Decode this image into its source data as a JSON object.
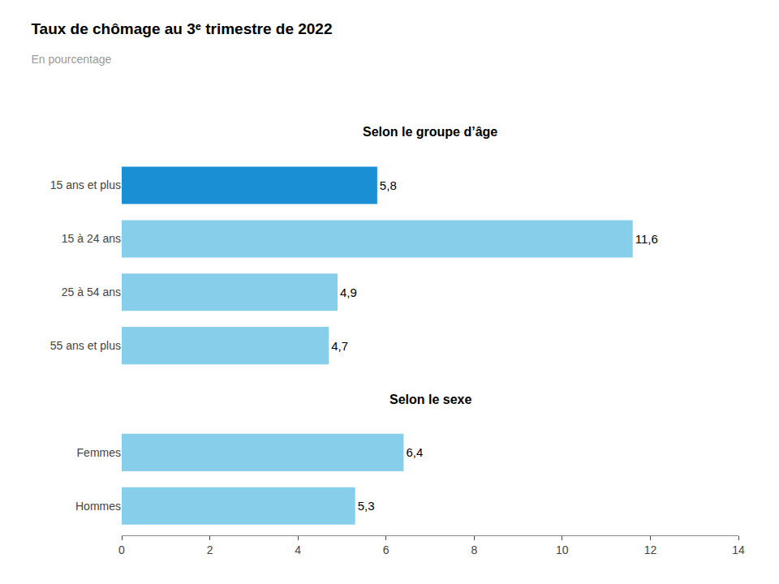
{
  "chart_data": {
    "type": "bar",
    "orientation": "horizontal",
    "title": "Taux de chômage au 3ᵉ trimestre de 2022",
    "subtitle": "En pourcentage",
    "annotations": [
      {
        "text": "Selon le groupe d’âge",
        "category": "15 ans et plus"
      },
      {
        "text": "Selon le sexe",
        "category": "Femmes"
      }
    ],
    "categories": [
      "15 ans et plus",
      "15 à 24 ans",
      "25 à 54 ans",
      "55 ans et plus",
      "Femmes",
      "Hommes"
    ],
    "values": [
      5.8,
      11.6,
      4.9,
      4.7,
      6.4,
      5.3
    ],
    "value_labels": [
      "5,8",
      "11,6",
      "4,9",
      "4,7",
      "6,4",
      "5,3"
    ],
    "data_labels": true,
    "colors": [
      "#1B8FD4",
      "#87CEEB",
      "#87CEEB",
      "#87CEEB",
      "#87CEEB",
      "#87CEEB"
    ],
    "xlim": [
      0,
      14
    ],
    "xticks": [
      0,
      2,
      4,
      6,
      8,
      10,
      12,
      14
    ],
    "grid": false
  }
}
